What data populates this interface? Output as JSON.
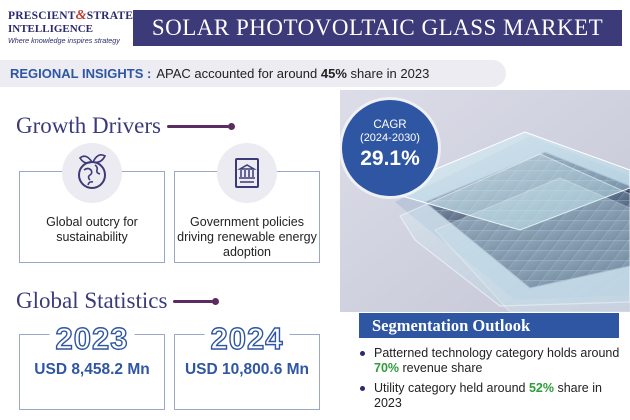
{
  "logo": {
    "line1_a": "PRESCIENT",
    "amp": "&",
    "line1_b": "STRATEGIC",
    "line2": "INTELLIGENCE",
    "tagline": "Where knowledge inspires strategy"
  },
  "title": "SOLAR PHOTOVOLTAIC GLASS MARKET",
  "regional": {
    "label": "REGIONAL INSIGHTS :",
    "text_pre": "APAC accounted for around",
    "value": "45%",
    "text_post": "share in 2023"
  },
  "growth_drivers": {
    "heading": "Growth Drivers",
    "items": [
      {
        "icon": "globe-leaf-icon",
        "text": "Global outcry for sustainability"
      },
      {
        "icon": "government-document-icon",
        "text": "Government policies driving renewable energy adoption"
      }
    ]
  },
  "cagr": {
    "label": "CAGR",
    "period": "(2024-2030)",
    "value": "29.1%"
  },
  "global_statistics": {
    "heading": "Global Statistics",
    "stats": [
      {
        "year": "2023",
        "value": "USD 8,458.2 Mn"
      },
      {
        "year": "2024",
        "value": "USD 10,800.6 Mn"
      }
    ]
  },
  "segmentation": {
    "heading": "Segmentation Outlook",
    "items": [
      {
        "pre": "Patterned technology category holds around",
        "value": "70%",
        "post": "revenue share"
      },
      {
        "pre": "Utility category held around",
        "value": "52%",
        "post": "share in 2023"
      }
    ]
  },
  "colors": {
    "navy": "#3d3a79",
    "blue": "#2f56a3",
    "plum": "#5b2c5f",
    "green": "#2e9d3a"
  }
}
